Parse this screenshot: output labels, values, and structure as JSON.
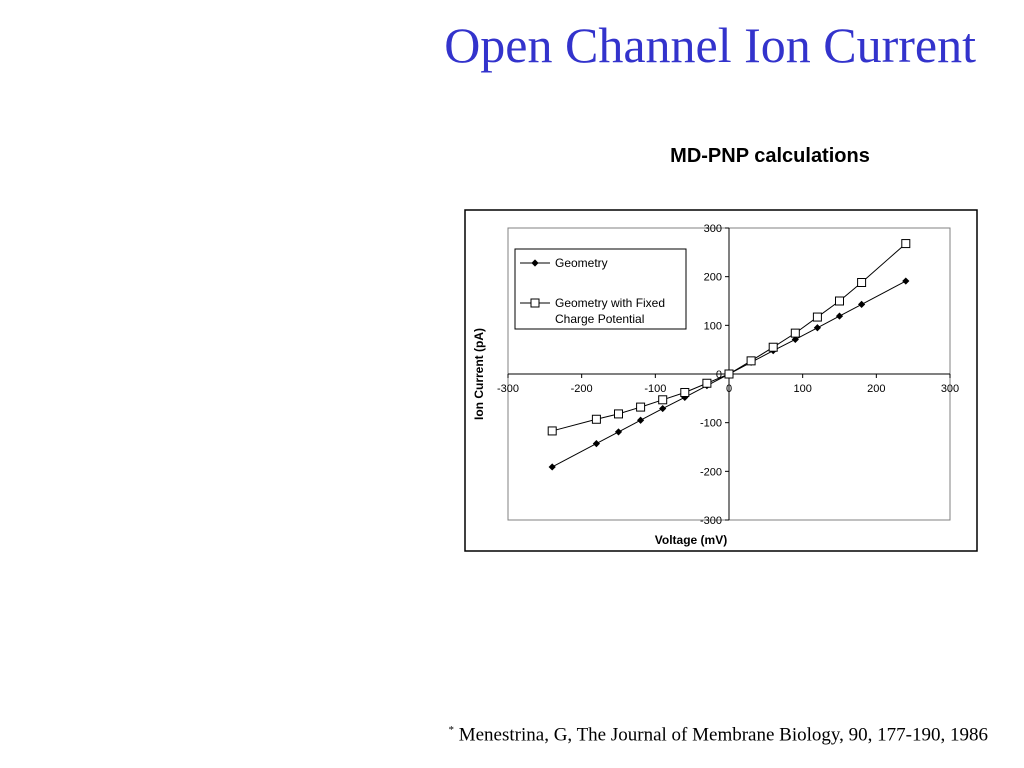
{
  "slide": {
    "title": "Open Channel Ion Current",
    "citation_marker": "*",
    "citation": "Menestrina, G, The Journal of Membrane Biology, 90, 177-190, 1986"
  },
  "chart_data": {
    "type": "line",
    "title": "MD-PNP calculations",
    "xlabel": "Voltage (mV)",
    "ylabel": "Ion Current (pA)",
    "xlim": [
      -300,
      300
    ],
    "ylim": [
      -300,
      300
    ],
    "x_ticks": [
      "-300",
      "-200",
      "-100",
      "0",
      "100",
      "200",
      "300"
    ],
    "y_ticks": [
      "300",
      "200",
      "100",
      "0",
      "-100",
      "-200",
      "-300"
    ],
    "grid": false,
    "legend_position": "top-left",
    "series": [
      {
        "name": "Geometry",
        "marker": "diamond-filled",
        "color": "#000000",
        "x": [
          -240,
          -180,
          -150,
          -120,
          -90,
          -60,
          -30,
          0,
          30,
          60,
          90,
          120,
          150,
          180,
          240
        ],
        "y": [
          -191,
          -143,
          -119,
          -95,
          -71,
          -48,
          -24,
          0,
          24,
          48,
          71,
          95,
          119,
          143,
          191
        ]
      },
      {
        "name": "Geometry with Fixed Charge Potential",
        "legend_lines": [
          "Geometry with Fixed",
          "Charge Potential"
        ],
        "marker": "square-open",
        "color": "#000000",
        "x": [
          -240,
          -180,
          -150,
          -120,
          -90,
          -60,
          -30,
          0,
          30,
          60,
          90,
          120,
          150,
          180,
          240
        ],
        "y": [
          -117,
          -93,
          -82,
          -68,
          -53,
          -38,
          -19,
          0,
          27,
          55,
          84,
          117,
          150,
          188,
          268
        ]
      }
    ]
  }
}
